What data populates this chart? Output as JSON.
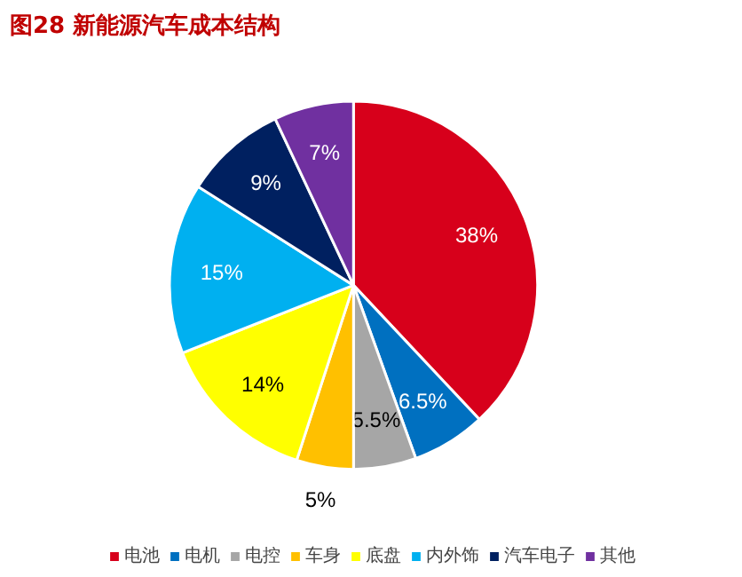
{
  "chart_data": {
    "type": "pie",
    "title": "图28  新能源汽车成本结构",
    "categories": [
      "电池",
      "电机",
      "电控",
      "车身",
      "底盘",
      "内外饰",
      "汽车电子",
      "其他"
    ],
    "values": [
      38,
      6.5,
      5.5,
      5,
      14,
      15,
      9,
      7
    ],
    "colors": [
      "#d7001b",
      "#0070c0",
      "#a6a6a6",
      "#ffc000",
      "#ffff00",
      "#00b0f0",
      "#002060",
      "#7030a0"
    ],
    "value_labels": [
      "38%",
      "6.5%",
      "5.5%",
      "5%",
      "14%",
      "15%",
      "9%",
      "7%"
    ],
    "legend": "bottom"
  }
}
